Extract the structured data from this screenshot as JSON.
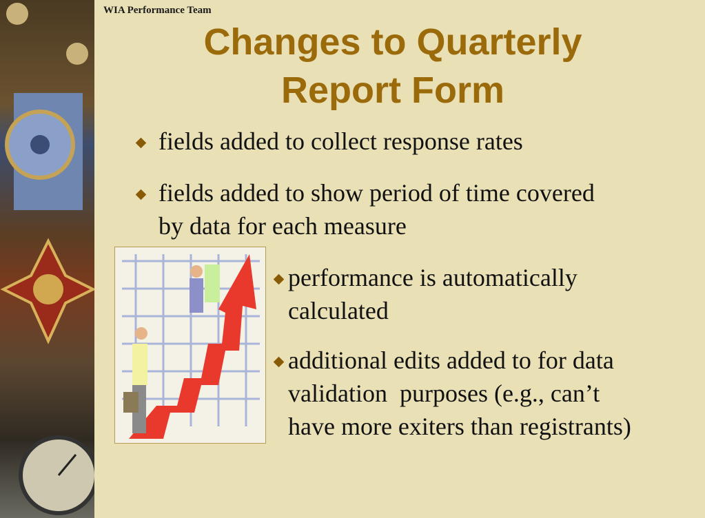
{
  "header": {
    "team": "WIA Performance Team",
    "title": "Changes to Quarterly Report Form"
  },
  "bullets": [
    "fields added to collect response rates",
    "fields added to show period of time covered by data for each measure",
    "performance is automatically calculated",
    "additional edits added to for data validation  purposes (e.g., can’t have more exiters than registrants)"
  ]
}
